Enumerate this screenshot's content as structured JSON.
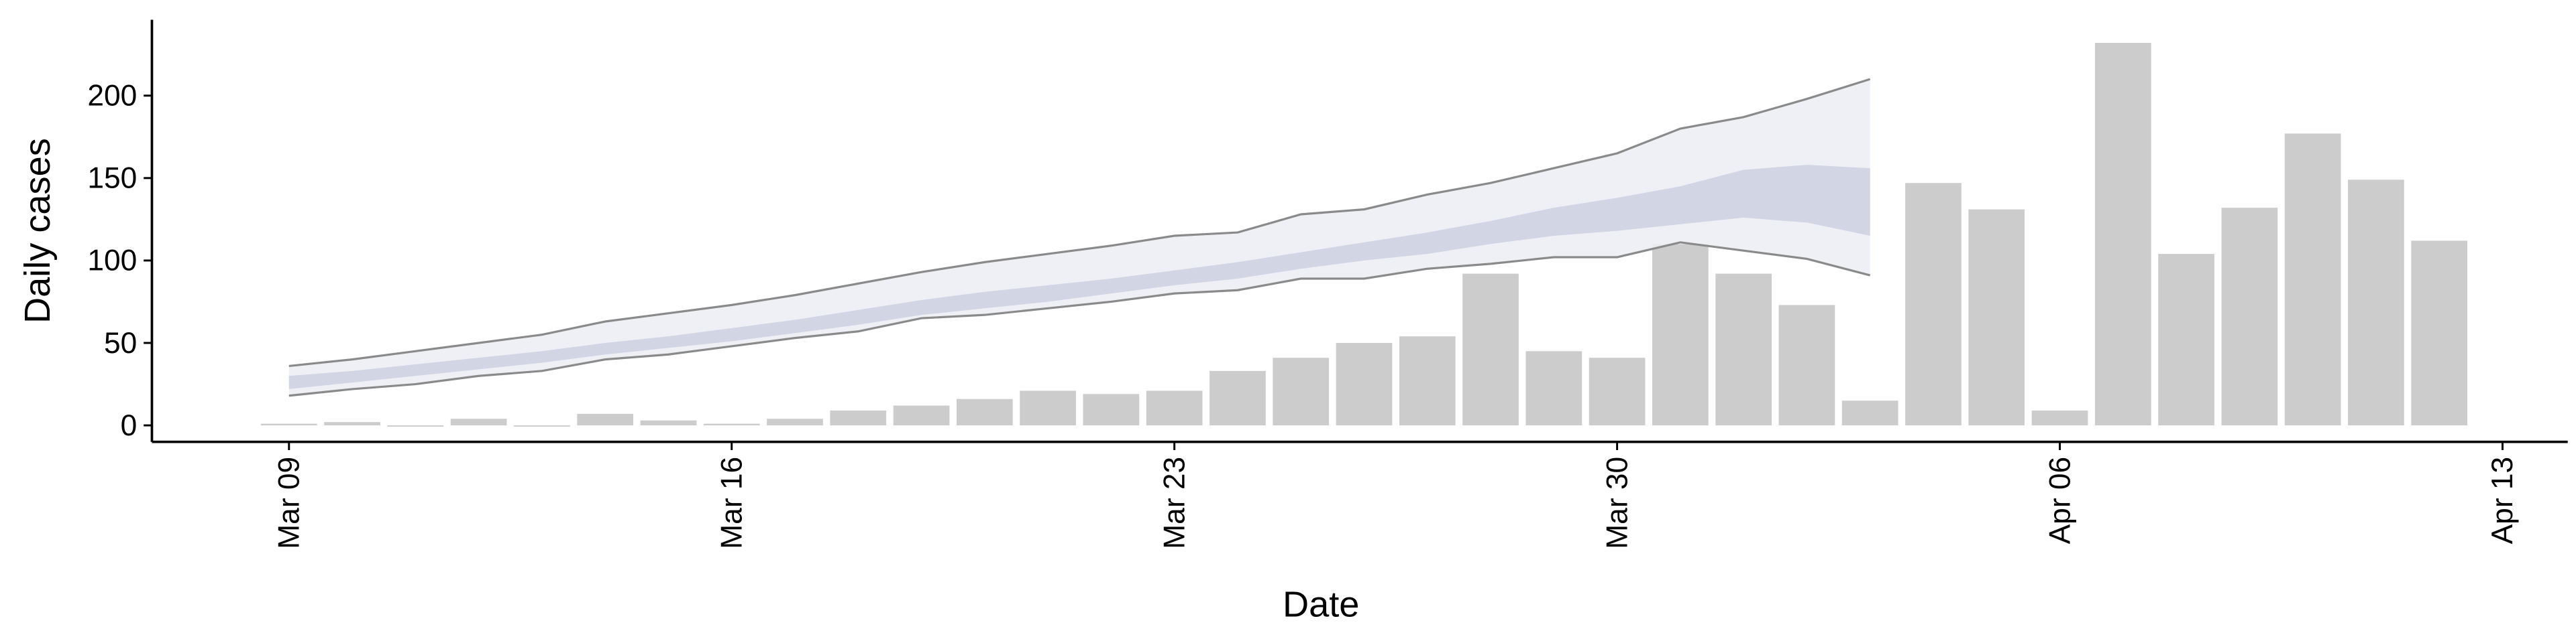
{
  "chart_data": {
    "type": "bar",
    "x_label": "Date",
    "y_label": "Daily cases",
    "categories": [
      "Mar 09",
      null,
      null,
      null,
      null,
      null,
      null,
      "Mar 16",
      null,
      null,
      null,
      null,
      null,
      null,
      "Mar 23",
      null,
      null,
      null,
      null,
      null,
      null,
      "Mar 30",
      null,
      null,
      null,
      null,
      null,
      null,
      "Apr 06",
      null,
      null,
      null,
      null,
      null,
      null,
      "Apr 13"
    ],
    "values": [
      1,
      2,
      0,
      4,
      0,
      7,
      3,
      1,
      4,
      9,
      12,
      16,
      21,
      19,
      21,
      33,
      41,
      50,
      54,
      92,
      45,
      41,
      110,
      92,
      73,
      15,
      147,
      131,
      9,
      232,
      104,
      132,
      177,
      149,
      112,
      null
    ],
    "color": "#cccccc",
    "band_outer": {
      "upper": [
        36,
        40,
        45,
        50,
        55,
        63,
        68,
        73,
        79,
        86,
        93,
        99,
        104,
        109,
        115,
        117,
        128,
        131,
        140,
        147,
        156,
        165,
        180,
        187,
        198,
        210,
        null,
        null,
        null,
        null,
        null,
        null,
        null,
        null,
        null,
        null
      ],
      "lower": [
        18,
        22,
        25,
        30,
        33,
        40,
        43,
        48,
        53,
        57,
        65,
        67,
        71,
        75,
        80,
        82,
        89,
        89,
        95,
        98,
        102,
        102,
        111,
        106,
        101,
        91,
        null,
        null,
        null,
        null,
        null,
        null,
        null,
        null,
        null,
        null
      ],
      "color": "#eceef4",
      "line_color": "#8a8a8a"
    },
    "band_inner": {
      "upper": [
        30,
        33,
        37,
        41,
        45,
        50,
        54,
        59,
        64,
        70,
        76,
        81,
        85,
        89,
        94,
        99,
        105,
        111,
        117,
        124,
        132,
        138,
        145,
        155,
        158,
        156,
        null,
        null,
        null,
        null,
        null,
        null,
        null,
        null,
        null,
        null
      ],
      "lower": [
        22,
        26,
        30,
        34,
        38,
        43,
        47,
        51,
        56,
        61,
        67,
        71,
        75,
        80,
        85,
        89,
        95,
        100,
        104,
        110,
        115,
        118,
        122,
        126,
        123,
        115,
        null,
        null,
        null,
        null,
        null,
        null,
        null,
        null,
        null,
        null
      ],
      "color": "#cdd2e2"
    },
    "ylim": [
      -10,
      246
    ],
    "yticks": [
      0,
      50,
      100,
      150,
      200
    ]
  }
}
